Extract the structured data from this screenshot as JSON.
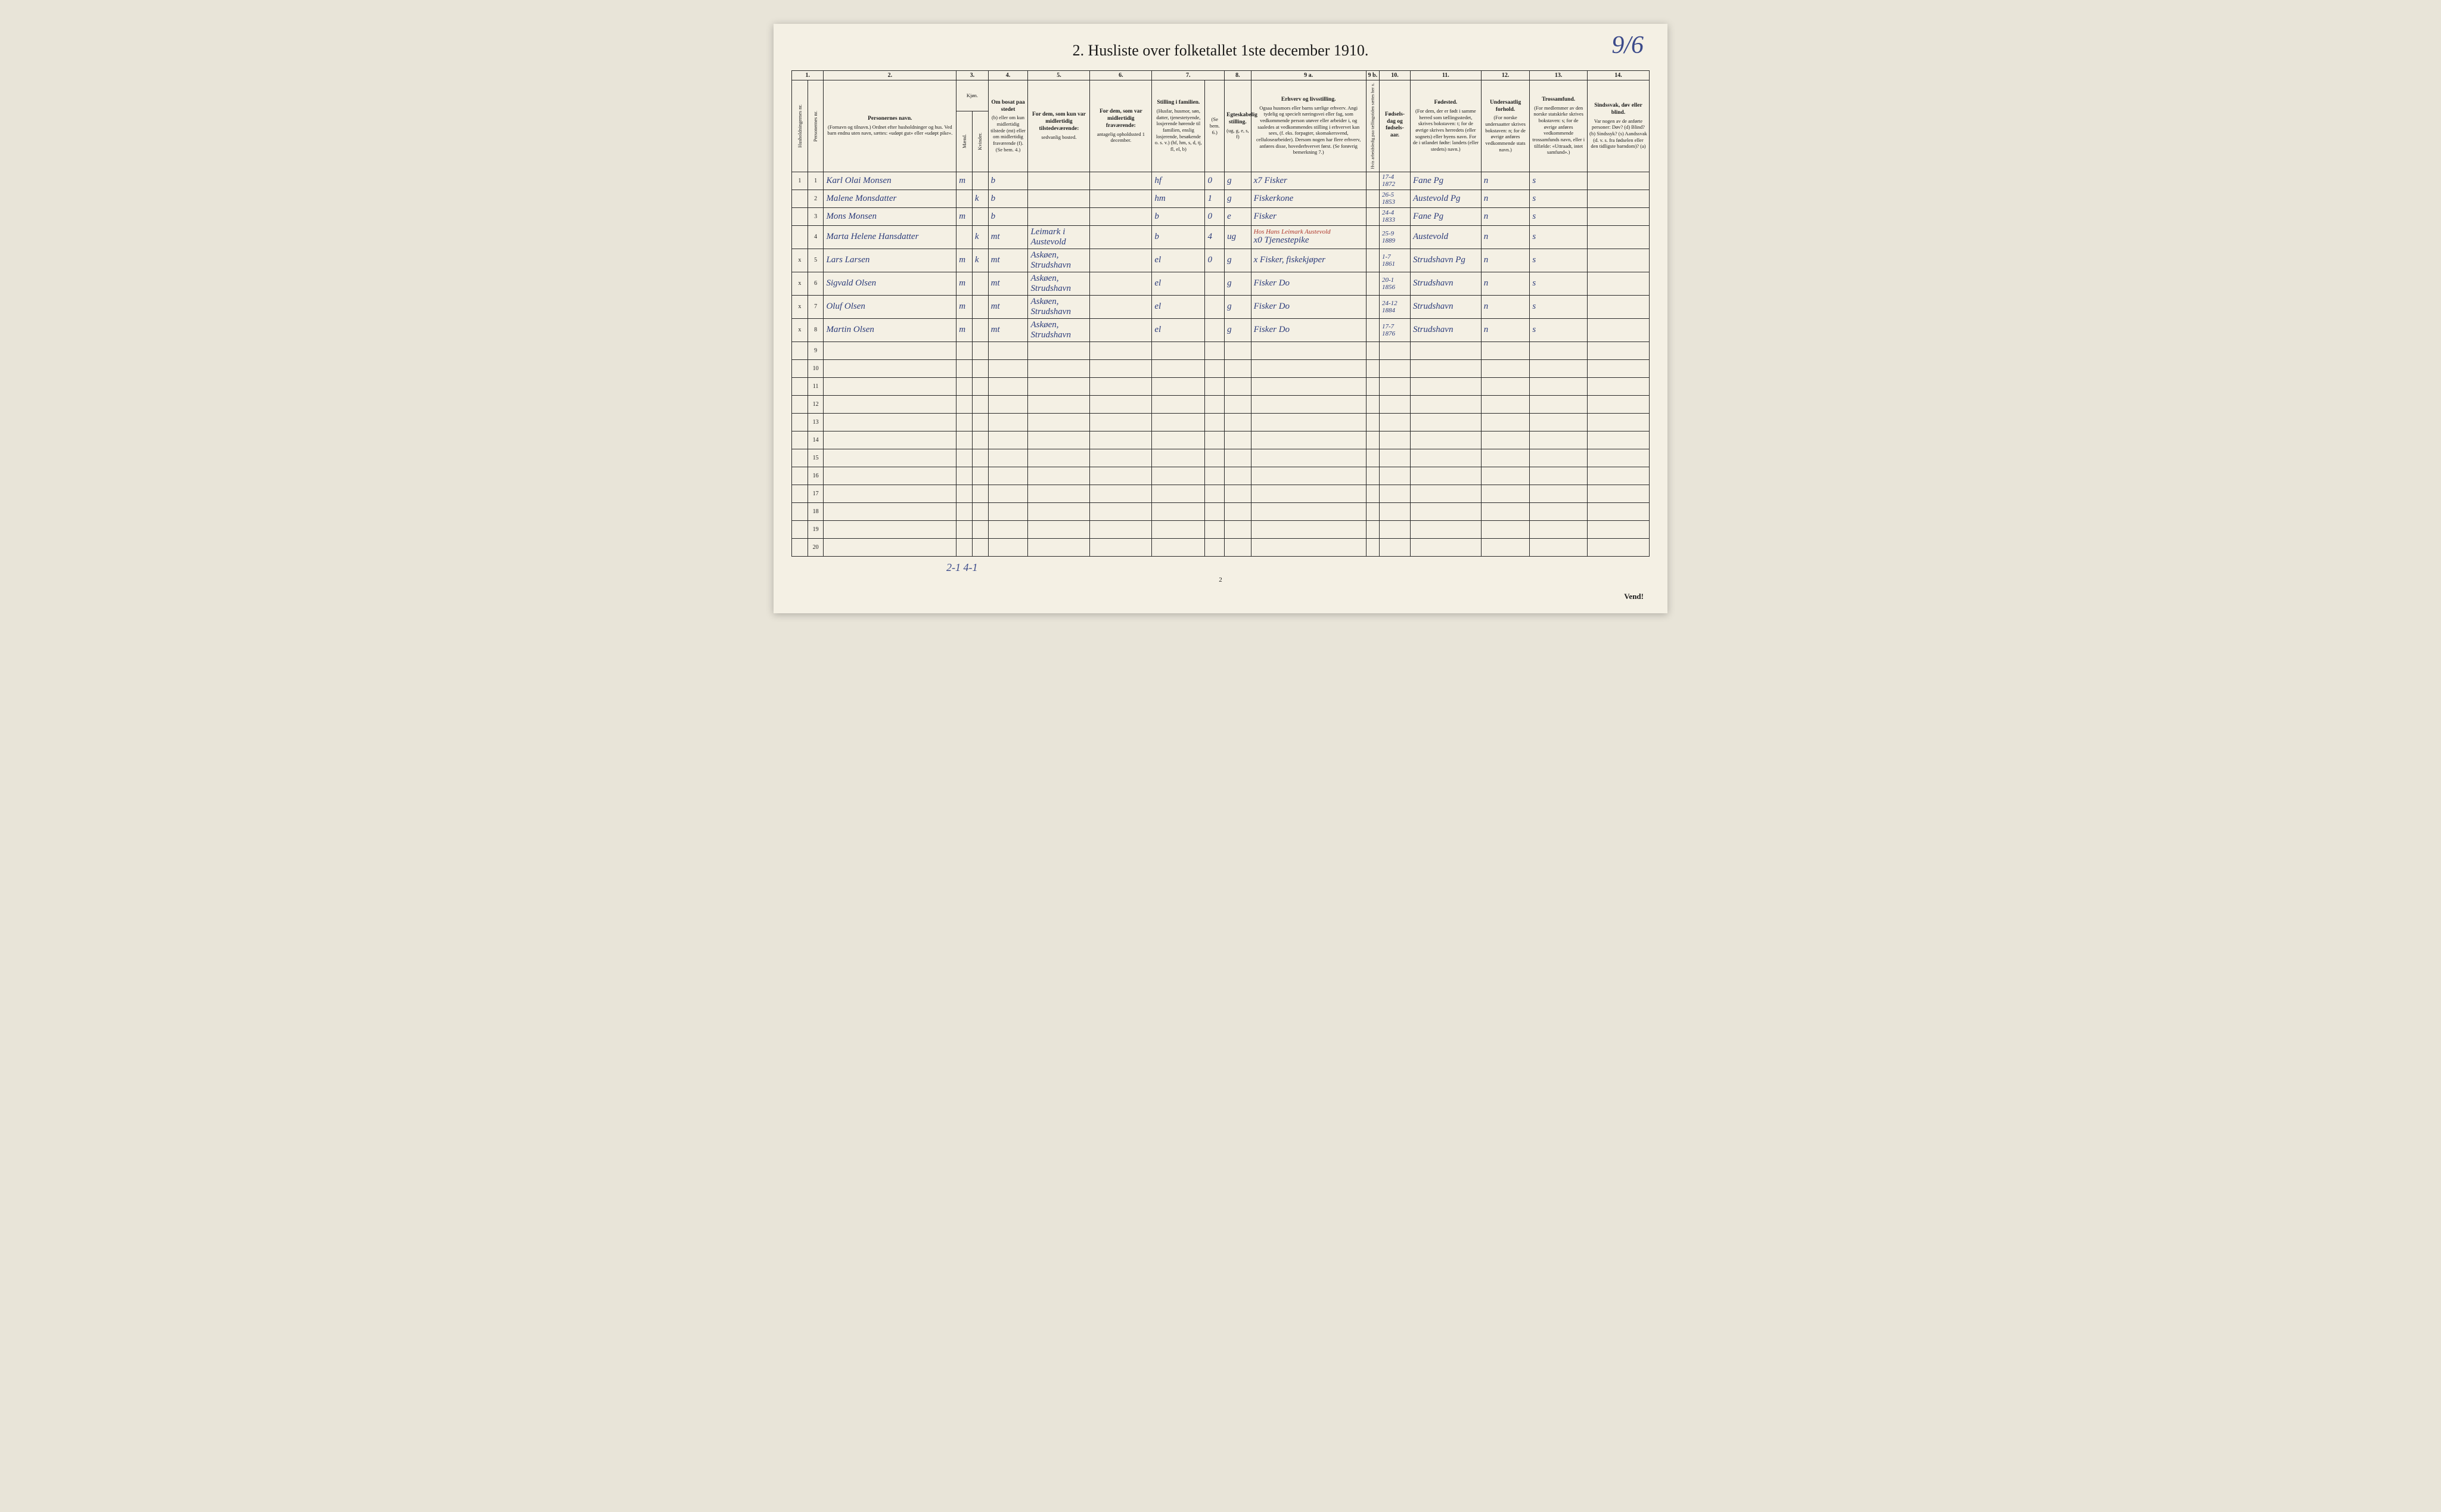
{
  "corner_note": "9/6",
  "title": "2.  Husliste over folketallet 1ste december 1910.",
  "column_numbers": [
    "1.",
    "2.",
    "3.",
    "4.",
    "5.",
    "6.",
    "7.",
    "8.",
    "9 a.",
    "9 b.",
    "10.",
    "11.",
    "12.",
    "13.",
    "14."
  ],
  "headers": {
    "c1a": "Husholdningernes nr.",
    "c1b": "Personernes nr.",
    "c2_main": "Personernes navn.",
    "c2_sub": "(Fornavn og tilnavn.)\nOrdnet efter husholdninger og hus.\nVed barn endnu uten navn, sættes: «udøpt gut» eller «udøpt pike».",
    "c3_main": "Kjøn.",
    "c3_m": "Mænd.",
    "c3_k": "Kvinder.",
    "c3_mk": "m.  k.",
    "c4_main": "Om bosat paa stedet",
    "c4_sub": "(b) eller om kun midlertidig tilstede (mt) eller om midlertidig fraværende (f).\n(Se bem. 4.)",
    "c5_main": "For dem, som kun var midlertidig tilstedeværende:",
    "c5_sub": "sedvanlig bosted.",
    "c6_main": "For dem, som var midlertidig fraværende:",
    "c6_sub": "antagelig opholdssted 1 december.",
    "c7_main": "Stilling i familien.",
    "c7_sub": "(Husfar, husmor, søn, datter, tjenestetyende, losjerende hørende til familien, enslig losjerende, besøkende o. s. v.)\n(hf, hm, s, d, tj, fl, el, b)",
    "c7b": "(Se bem. 6.)",
    "c8_main": "Egteskabelig stilling.",
    "c8_sub": "(ug, g, e, s, f)",
    "c9_main": "Erhverv og livsstilling.",
    "c9_sub": "Ogsaa husmors eller barns særlige erhverv. Angi tydelig og specielt næringsvei eller fag, som vedkommende person utøver eller arbeider i, og saaledes at vedkommendes stilling i erhvervet kan sees, (f. eks. forpagter, skomakersvend, cellulosearbeider). Dersom nogen har flere erhverv, anføres disse, hovederhvervet først.\n(Se forøvrig bemerkning 7.)",
    "c9b": "Hvis arbeidsledig paa tællingstiden sættes her x.",
    "c10_main": "Fødsels-dag og fødsels-aar.",
    "c11_main": "Fødested.",
    "c11_sub": "(For dem, der er født i samme herred som tællingsstedet, skrives bokstaven: t; for de øvrige skrives herredets (eller sognets) eller byens navn. For de i utlandet fødte: landets (eller stedets) navn.)",
    "c12_main": "Undersaatlig forhold.",
    "c12_sub": "(For norske undersaatter skrives bokstaven: n; for de øvrige anføres vedkommende stats navn.)",
    "c13_main": "Trossamfund.",
    "c13_sub": "(For medlemmer av den norske statskirke skrives bokstaven: s; for de øvrige anføres vedkommende trossamfunds navn, eller i tilfælde: «Uttraadt, intet samfund».)",
    "c14_main": "Sindssvak, døv eller blind.",
    "c14_sub": "Var nogen av de anførte personer:\nDøv?       (d)\nBlind?     (b)\nSindssyk?  (s)\nAandssvak (d. v. s. fra fødselen eller den tidligste barndom)?  (a)"
  },
  "rows": [
    {
      "hnr": "1",
      "pnr": "1",
      "name": "Karl Olai Monsen",
      "m": "m",
      "k": "",
      "bosat": "b",
      "sedv": "",
      "frav": "",
      "fam": "hf",
      "famn": "0",
      "egt": "g",
      "erhverv": "x7 Fisker",
      "xb": "",
      "fdato": "17-4\n1872",
      "fsted": "Fane Pg",
      "und": "n",
      "tro": "s",
      "sind": ""
    },
    {
      "hnr": "",
      "pnr": "2",
      "name": "Malene Monsdatter",
      "m": "",
      "k": "k",
      "bosat": "b",
      "sedv": "",
      "frav": "",
      "fam": "hm",
      "famn": "1",
      "egt": "g",
      "erhverv": "Fiskerkone",
      "xb": "",
      "fdato": "26-5\n1853",
      "fsted": "Austevold Pg",
      "und": "n",
      "tro": "s",
      "sind": ""
    },
    {
      "hnr": "",
      "pnr": "3",
      "name": "Mons Monsen",
      "m": "m",
      "k": "",
      "bosat": "b",
      "sedv": "",
      "frav": "",
      "fam": "b",
      "famn": "0",
      "egt": "e",
      "erhverv": "Fisker",
      "xb": "",
      "fdato": "24-4\n1833",
      "fsted": "Fane Pg",
      "und": "n",
      "tro": "s",
      "sind": ""
    },
    {
      "hnr": "",
      "pnr": "4",
      "name": "Marta Helene Hansdatter",
      "m": "",
      "k": "k",
      "bosat": "mt",
      "sedv": "Leimark i Austevold",
      "frav": "",
      "fam": "b",
      "famn": "4",
      "egt": "ug",
      "erhverv": "x0 Tjenestepike",
      "erhverv_red": "Hos Hans Leimark Austevold",
      "xb": "",
      "fdato": "25-9\n1889",
      "fsted": "Austevold",
      "und": "n",
      "tro": "s",
      "sind": ""
    },
    {
      "hnr": "x",
      "pnr": "5",
      "name": "Lars Larsen",
      "m": "m",
      "k": "k",
      "bosat": "mt",
      "sedv": "Askøen, Strudshavn",
      "frav": "",
      "fam": "el",
      "famn": "0",
      "egt": "g",
      "erhverv": "x Fisker, fiskekjøper",
      "xb": "",
      "fdato": "1-7\n1861",
      "fsted": "Strudshavn Pg",
      "und": "n",
      "tro": "s",
      "sind": ""
    },
    {
      "hnr": "x",
      "pnr": "6",
      "name": "Sigvald Olsen",
      "m": "m",
      "k": "",
      "bosat": "mt",
      "sedv": "Askøen, Strudshavn",
      "frav": "",
      "fam": "el",
      "famn": "",
      "egt": "g",
      "erhverv": "Fisker    Do",
      "xb": "",
      "fdato": "20-1\n1856",
      "fsted": "Strudshavn",
      "und": "n",
      "tro": "s",
      "sind": ""
    },
    {
      "hnr": "x",
      "pnr": "7",
      "name": "Oluf Olsen",
      "m": "m",
      "k": "",
      "bosat": "mt",
      "sedv": "Askøen, Strudshavn",
      "frav": "",
      "fam": "el",
      "famn": "",
      "egt": "g",
      "erhverv": "Fisker    Do",
      "xb": "",
      "fdato": "24-12\n1884",
      "fsted": "Strudshavn",
      "und": "n",
      "tro": "s",
      "sind": ""
    },
    {
      "hnr": "x",
      "pnr": "8",
      "name": "Martin Olsen",
      "m": "m",
      "k": "",
      "bosat": "mt",
      "sedv": "Askøen, Strudshavn",
      "frav": "",
      "fam": "el",
      "famn": "",
      "egt": "g",
      "erhverv": "Fisker    Do",
      "xb": "",
      "fdato": "17-7\n1876",
      "fsted": "Strudshavn",
      "und": "n",
      "tro": "s",
      "sind": ""
    }
  ],
  "empty_rows": [
    9,
    10,
    11,
    12,
    13,
    14,
    15,
    16,
    17,
    18,
    19,
    20
  ],
  "footer_annotation": "2-1   4-1",
  "page_number": "2",
  "vend": "Vend!"
}
